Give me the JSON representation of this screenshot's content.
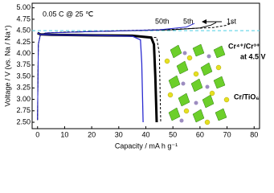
{
  "chart_data": {
    "type": "line",
    "x_label": "Capacity / mA h g⁻¹",
    "y_label": "Voltage / V (vs. Na / Na⁺)",
    "xlim": [
      -2,
      82
    ],
    "ylim": [
      2.36,
      5.1
    ],
    "xticks": [
      0,
      10,
      20,
      30,
      40,
      50,
      60,
      70,
      80
    ],
    "yticks": [
      {
        "value": 2.5,
        "label": "2.50"
      },
      {
        "value": 2.75,
        "label": "2.75"
      },
      {
        "value": 3,
        "label": "3.00"
      },
      {
        "value": 3.25,
        "label": "3.25"
      },
      {
        "value": 3.5,
        "label": "3.50"
      },
      {
        "value": 3.75,
        "label": "3.75"
      },
      {
        "value": 4,
        "label": "4.00"
      },
      {
        "value": 4.25,
        "label": "4.25"
      },
      {
        "value": 4.5,
        "label": "4.50"
      },
      {
        "value": 4.75,
        "label": "4.75"
      },
      {
        "value": 5,
        "label": "5.00"
      }
    ],
    "reference_line": {
      "value": 4.5,
      "color": "#6fd8e8",
      "style": "dashed"
    },
    "annotations": {
      "condition": "0.05 C @ 25 ℃",
      "redox": "Cr⁴⁺/Cr³⁺",
      "redox_voltage": "at 4.5 V",
      "structure": "Cr/TiO₆"
    },
    "series": [
      {
        "name": "1st",
        "color": "#000000",
        "style": "dashed",
        "width": 1,
        "x": [
          0,
          0.3,
          1,
          3,
          10,
          30,
          50,
          65,
          70,
          72
        ],
        "values": [
          2.55,
          4.2,
          4.4,
          4.45,
          4.47,
          4.5,
          4.53,
          4.57,
          4.62,
          4.68
        ]
      },
      {
        "name": "5th",
        "color": "#000000",
        "style": "solid",
        "width": 1,
        "x": [
          0,
          0.3,
          1,
          3,
          20,
          50,
          60,
          64,
          66
        ],
        "values": [
          2.55,
          4.2,
          4.4,
          4.45,
          4.48,
          4.52,
          4.56,
          4.62,
          4.68
        ]
      },
      {
        "name": "50th",
        "color": "#2a2ad0",
        "style": "solid",
        "width": 1,
        "x": [
          0,
          0.3,
          1,
          3,
          20,
          45,
          55,
          58
        ],
        "values": [
          2.55,
          4.2,
          4.4,
          4.45,
          4.48,
          4.52,
          4.58,
          4.66
        ]
      },
      {
        "color": "#000000",
        "style": "dashed",
        "width": 1,
        "x": [
          0,
          5,
          30,
          44,
          45,
          45.5
        ],
        "values": [
          4.44,
          4.41,
          4.39,
          4.35,
          4.0,
          2.5
        ]
      },
      {
        "color": "#000000",
        "style": "solid",
        "width": 3,
        "x": [
          0,
          1,
          5,
          20,
          35,
          42,
          43,
          43.5,
          44
        ],
        "values": [
          4.45,
          4.42,
          4.41,
          4.4,
          4.39,
          4.35,
          4.2,
          3.5,
          2.5
        ]
      },
      {
        "color": "#2a2ad0",
        "style": "solid",
        "width": 1.3,
        "x": [
          0,
          1,
          5,
          20,
          35,
          38,
          38.5,
          39
        ],
        "values": [
          4.45,
          4.42,
          4.41,
          4.4,
          4.38,
          4.3,
          3.8,
          2.5
        ]
      }
    ]
  }
}
